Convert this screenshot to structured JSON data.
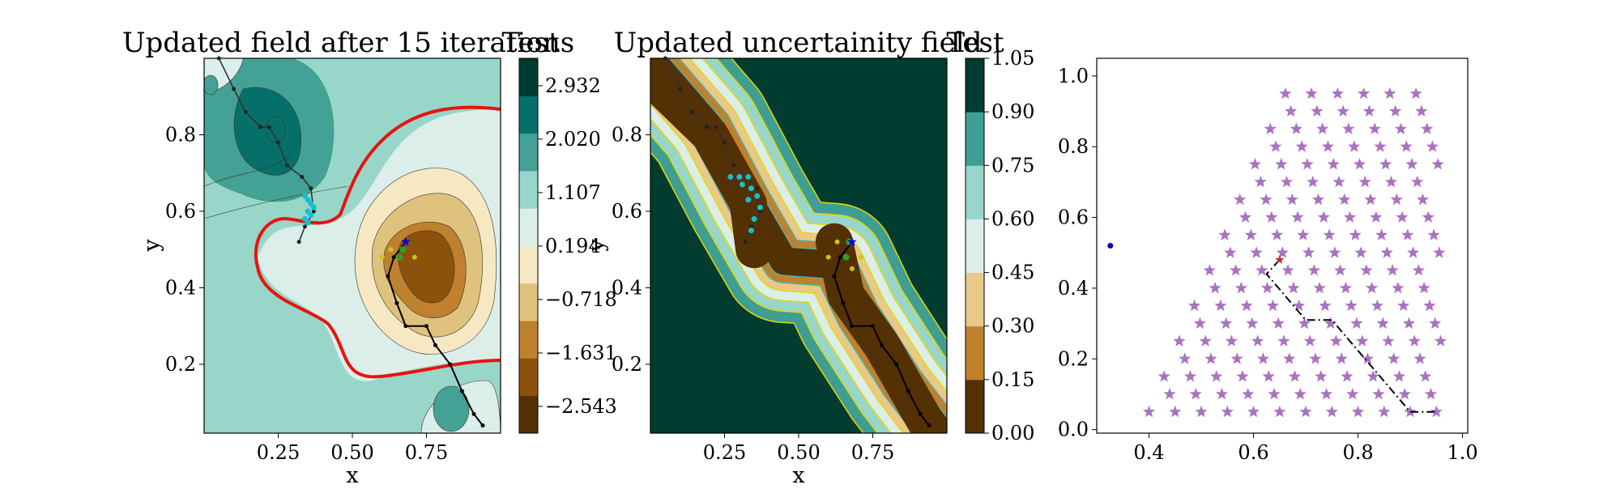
{
  "panels": [
    {
      "title": "Updated field after 15 iterations",
      "xlabel": "x",
      "ylabel": "y",
      "xticks": [
        "0.25",
        "0.50",
        "0.75"
      ],
      "yticks": [
        "0.2",
        "0.4",
        "0.6",
        "0.8"
      ],
      "colorbar": {
        "label": "Test",
        "ticks": [
          "2.932",
          "2.020",
          "1.107",
          "0.194",
          "−0.718",
          "−1.631",
          "−2.543"
        ],
        "colors": [
          "#543005",
          "#8c510a",
          "#bf812d",
          "#dfc27d",
          "#f6e8c3",
          "#dceee9",
          "#98d6c9",
          "#44a195",
          "#05706a",
          "#003c30"
        ]
      }
    },
    {
      "title": "Updated uncertainity field",
      "xlabel": "x",
      "ylabel": "y",
      "xticks": [
        "0.25",
        "0.50",
        "0.75"
      ],
      "yticks": [
        "0.2",
        "0.4",
        "0.6",
        "0.8"
      ],
      "colorbar": {
        "label": "Test",
        "ticks": [
          "1.05",
          "0.90",
          "0.75",
          "0.60",
          "0.45",
          "0.30",
          "0.15",
          "0.00"
        ],
        "colors": [
          "#543005",
          "#bf812d",
          "#e8c98a",
          "#dceee9",
          "#98d6c9",
          "#3f9e93",
          "#003c30"
        ]
      }
    },
    {
      "xticks": [
        "0.4",
        "0.6",
        "0.8",
        "1.0"
      ],
      "yticks": [
        "0.0",
        "0.2",
        "0.4",
        "0.6",
        "0.8",
        "1.0"
      ]
    }
  ],
  "chart_data": [
    {
      "type": "heatmap",
      "title": "Updated field after 15 iterations",
      "xlabel": "x",
      "ylabel": "y",
      "xlim": [
        0.0,
        1.0
      ],
      "ylim": [
        0.02,
        1.0
      ],
      "colorbar_label": "Test",
      "colorbar_range": [
        -3.0,
        3.4
      ],
      "path": [
        [
          0.05,
          1.0
        ],
        [
          0.1,
          0.92
        ],
        [
          0.14,
          0.86
        ],
        [
          0.19,
          0.82
        ],
        [
          0.22,
          0.82
        ],
        [
          0.25,
          0.78
        ],
        [
          0.28,
          0.72
        ],
        [
          0.33,
          0.69
        ],
        [
          0.36,
          0.66
        ],
        [
          0.37,
          0.6
        ],
        [
          0.34,
          0.56
        ],
        [
          0.32,
          0.52
        ]
      ],
      "path2": [
        [
          0.68,
          0.52
        ],
        [
          0.64,
          0.48
        ],
        [
          0.62,
          0.43
        ],
        [
          0.65,
          0.36
        ],
        [
          0.68,
          0.3
        ],
        [
          0.75,
          0.3
        ],
        [
          0.78,
          0.25
        ],
        [
          0.83,
          0.2
        ],
        [
          0.87,
          0.13
        ],
        [
          0.91,
          0.07
        ],
        [
          0.94,
          0.04
        ]
      ],
      "samples_cyan": [
        [
          0.34,
          0.64
        ],
        [
          0.35,
          0.63
        ],
        [
          0.36,
          0.62
        ],
        [
          0.37,
          0.61
        ],
        [
          0.35,
          0.6
        ],
        [
          0.36,
          0.59
        ],
        [
          0.34,
          0.58
        ],
        [
          0.35,
          0.57
        ]
      ],
      "samples_yellow": [
        [
          0.6,
          0.48
        ],
        [
          0.63,
          0.5
        ],
        [
          0.71,
          0.48
        ]
      ],
      "samples_green": [
        [
          0.66,
          0.48
        ],
        [
          0.67,
          0.5
        ]
      ],
      "marker_star": [
        0.68,
        0.52
      ]
    },
    {
      "type": "heatmap",
      "title": "Updated uncertainity field",
      "xlabel": "x",
      "ylabel": "y",
      "xlim": [
        0.0,
        1.0
      ],
      "ylim": [
        0.02,
        1.0
      ],
      "colorbar_label": "Test",
      "colorbar_range": [
        0.0,
        1.05
      ],
      "path": [
        [
          0.05,
          1.0
        ],
        [
          0.1,
          0.92
        ],
        [
          0.14,
          0.86
        ],
        [
          0.19,
          0.82
        ],
        [
          0.22,
          0.82
        ],
        [
          0.25,
          0.78
        ],
        [
          0.28,
          0.72
        ],
        [
          0.33,
          0.69
        ],
        [
          0.36,
          0.66
        ],
        [
          0.37,
          0.6
        ],
        [
          0.34,
          0.56
        ],
        [
          0.32,
          0.52
        ]
      ],
      "path2": [
        [
          0.68,
          0.52
        ],
        [
          0.64,
          0.48
        ],
        [
          0.62,
          0.43
        ],
        [
          0.65,
          0.36
        ],
        [
          0.68,
          0.3
        ],
        [
          0.75,
          0.3
        ],
        [
          0.78,
          0.25
        ],
        [
          0.83,
          0.2
        ],
        [
          0.87,
          0.13
        ],
        [
          0.91,
          0.07
        ],
        [
          0.94,
          0.04
        ]
      ],
      "samples_cyan": [
        [
          0.27,
          0.69
        ],
        [
          0.3,
          0.69
        ],
        [
          0.33,
          0.69
        ],
        [
          0.34,
          0.66
        ],
        [
          0.36,
          0.64
        ],
        [
          0.37,
          0.61
        ],
        [
          0.35,
          0.58
        ],
        [
          0.34,
          0.55
        ],
        [
          0.31,
          0.67
        ],
        [
          0.33,
          0.63
        ]
      ],
      "samples_yellow": [
        [
          0.6,
          0.48
        ],
        [
          0.63,
          0.52
        ],
        [
          0.71,
          0.48
        ],
        [
          0.68,
          0.45
        ]
      ],
      "samples_green": [
        [
          0.66,
          0.48
        ],
        [
          0.67,
          0.52
        ]
      ],
      "marker_star": [
        0.68,
        0.52
      ]
    },
    {
      "type": "scatter",
      "xlim": [
        0.3,
        1.01
      ],
      "ylim": [
        -0.01,
        1.05
      ],
      "series": [
        {
          "marker": "star",
          "color": "#9b59b6",
          "rule": "lattice 0.025 spacing, x>=0.6-0.25*(0.7-y)... triangular region"
        },
        {
          "marker": "dot",
          "color": "#0000cc",
          "points": [
            [
              0.326,
              0.52
            ]
          ]
        }
      ],
      "path": [
        [
          0.65,
          0.48
        ],
        [
          0.625,
          0.44
        ],
        [
          0.7,
          0.31
        ],
        [
          0.75,
          0.31
        ],
        [
          0.9,
          0.05
        ],
        [
          0.95,
          0.05
        ]
      ],
      "marker_red": [
        0.65,
        0.48
      ]
    }
  ]
}
